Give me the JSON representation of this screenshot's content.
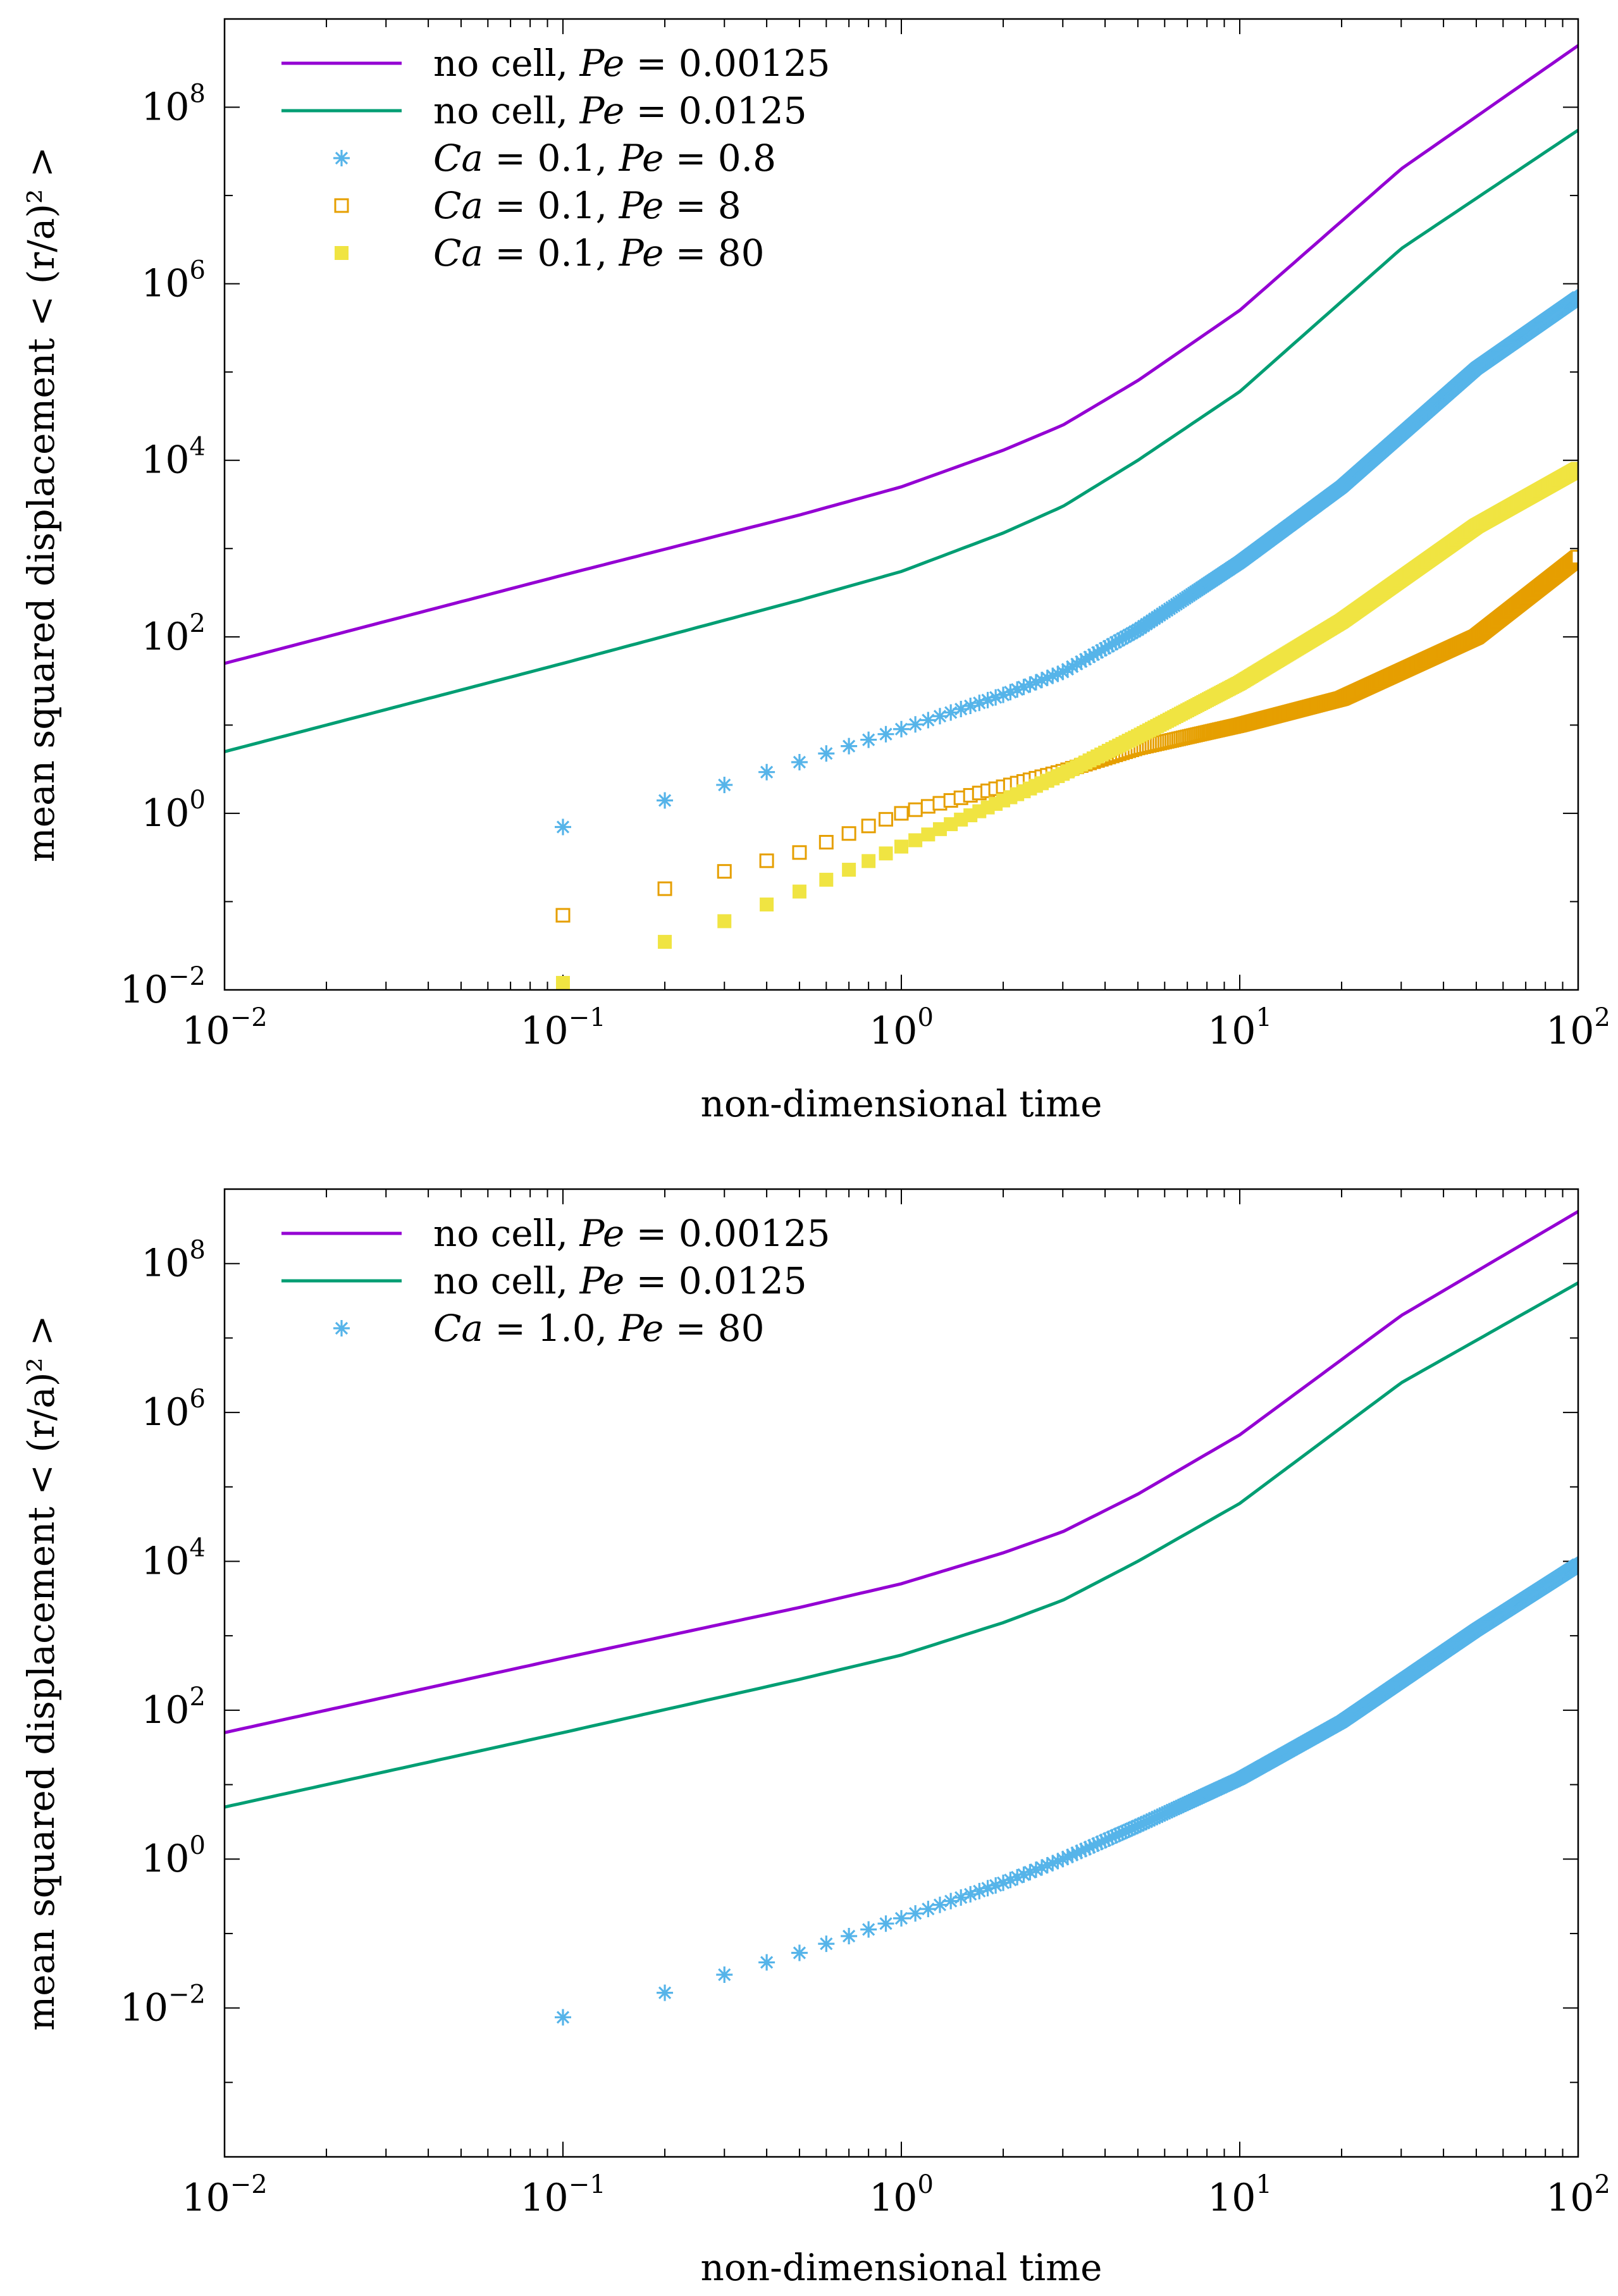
{
  "colors": {
    "no_cell_Pe_0_00125": "#9400d3",
    "no_cell_Pe_0_0125": "#009e73",
    "sky": "#56b4e9",
    "orange": "#e69f00",
    "yellow": "#f0e442"
  },
  "chart_data": [
    {
      "type": "scatter",
      "xscale": "log",
      "yscale": "log",
      "xlim": [
        0.01,
        100
      ],
      "ylim": [
        0.01,
        1000000000
      ],
      "xlabel": "non-dimensional time",
      "ylabel": "mean squared displacement < (r/a)² >",
      "xticks": [
        {
          "base": "10",
          "exp": "−2"
        },
        {
          "base": "10",
          "exp": "−1"
        },
        {
          "base": "10",
          "exp": "0"
        },
        {
          "base": "10",
          "exp": "1"
        },
        {
          "base": "10",
          "exp": "2"
        }
      ],
      "yticks": [
        {
          "base": "10",
          "exp": "−2"
        },
        {
          "base": "10",
          "exp": "0"
        },
        {
          "base": "10",
          "exp": "2"
        },
        {
          "base": "10",
          "exp": "4"
        },
        {
          "base": "10",
          "exp": "6"
        },
        {
          "base": "10",
          "exp": "8"
        }
      ],
      "legend_position": "top-left",
      "series": [
        {
          "name": "no cell, Pe = 0.00125",
          "legend": {
            "prefix": "no cell, ",
            "parts": [
              "Pe",
              " = 0.00125"
            ]
          },
          "style": "line",
          "color": "#9400d3",
          "x": [
            0.01,
            0.1,
            0.5,
            1,
            2,
            3,
            5,
            10,
            30,
            100
          ],
          "y": [
            50,
            500,
            2400,
            5000,
            13000,
            25000,
            80000,
            500000,
            20000000,
            500000000
          ]
        },
        {
          "name": "no cell, Pe = 0.0125",
          "legend": {
            "prefix": "no cell, ",
            "parts": [
              "Pe",
              " = 0.0125"
            ]
          },
          "style": "line",
          "color": "#009e73",
          "x": [
            0.01,
            0.1,
            0.5,
            1,
            2,
            3,
            5,
            10,
            30,
            100
          ],
          "y": [
            5,
            50,
            260,
            550,
            1500,
            3000,
            10000,
            60000,
            2500000,
            55000000
          ]
        },
        {
          "name": "Ca = 0.1, Pe = 0.8",
          "legend": {
            "prefix": "",
            "parts": [
              "Ca",
              " = 0.1, ",
              "Pe",
              " = 0.8"
            ]
          },
          "style": "star",
          "color": "#56b4e9",
          "x": [
            0.1,
            0.2,
            0.3,
            0.5,
            1,
            2,
            3,
            5,
            10,
            20,
            50,
            100
          ],
          "y": [
            0.7,
            1.4,
            2.1,
            3.8,
            9,
            22,
            40,
            120,
            700,
            5000,
            110000,
            700000
          ]
        },
        {
          "name": "Ca = 0.1, Pe = 8",
          "legend": {
            "prefix": "",
            "parts": [
              "Ca",
              " = 0.1, ",
              "Pe",
              " = 8"
            ]
          },
          "style": "open-square",
          "color": "#e69f00",
          "x": [
            0.1,
            0.2,
            0.3,
            0.5,
            1,
            2,
            3,
            5,
            10,
            20,
            50,
            100
          ],
          "y": [
            0.07,
            0.14,
            0.22,
            0.36,
            1.0,
            2.0,
            3.0,
            5.5,
            10,
            20,
            100,
            800
          ]
        },
        {
          "name": "Ca = 0.1, Pe = 80",
          "legend": {
            "prefix": "",
            "parts": [
              "Ca",
              " = 0.1, ",
              "Pe",
              " = 80"
            ]
          },
          "style": "filled-square",
          "color": "#f0e442",
          "x": [
            0.1,
            0.2,
            0.3,
            0.5,
            1,
            2,
            3,
            5,
            10,
            20,
            50,
            100
          ],
          "y": [
            0.012,
            0.035,
            0.06,
            0.13,
            0.42,
            1.4,
            2.8,
            7.5,
            30,
            150,
            1800,
            8000
          ]
        }
      ]
    },
    {
      "type": "scatter",
      "xscale": "log",
      "yscale": "log",
      "xlim": [
        0.01,
        100
      ],
      "ylim": [
        0.0001,
        1000000000
      ],
      "xlabel": "non-dimensional time",
      "ylabel": "mean squared displacement < (r/a)² >",
      "xticks": [
        {
          "base": "10",
          "exp": "−2"
        },
        {
          "base": "10",
          "exp": "−1"
        },
        {
          "base": "10",
          "exp": "0"
        },
        {
          "base": "10",
          "exp": "1"
        },
        {
          "base": "10",
          "exp": "2"
        }
      ],
      "yticks": [
        {
          "base": "10",
          "exp": "−2"
        },
        {
          "base": "10",
          "exp": "0"
        },
        {
          "base": "10",
          "exp": "2"
        },
        {
          "base": "10",
          "exp": "4"
        },
        {
          "base": "10",
          "exp": "6"
        },
        {
          "base": "10",
          "exp": "8"
        }
      ],
      "legend_position": "top-left",
      "series": [
        {
          "name": "no cell, Pe = 0.00125",
          "legend": {
            "prefix": "no cell, ",
            "parts": [
              "Pe",
              " = 0.00125"
            ]
          },
          "style": "line",
          "color": "#9400d3",
          "x": [
            0.01,
            0.1,
            0.5,
            1,
            2,
            3,
            5,
            10,
            30,
            100
          ],
          "y": [
            50,
            500,
            2400,
            5000,
            13000,
            25000,
            80000,
            500000,
            20000000,
            500000000
          ]
        },
        {
          "name": "no cell, Pe = 0.0125",
          "legend": {
            "prefix": "no cell, ",
            "parts": [
              "Pe",
              " = 0.0125"
            ]
          },
          "style": "line",
          "color": "#009e73",
          "x": [
            0.01,
            0.1,
            0.5,
            1,
            2,
            3,
            5,
            10,
            30,
            100
          ],
          "y": [
            5,
            50,
            260,
            550,
            1500,
            3000,
            10000,
            60000,
            2500000,
            55000000
          ]
        },
        {
          "name": "Ca = 1.0, Pe = 80",
          "legend": {
            "prefix": "",
            "parts": [
              "Ca",
              " = 1.0, ",
              "Pe",
              " = 80"
            ]
          },
          "style": "star",
          "color": "#56b4e9",
          "x": [
            0.1,
            0.2,
            0.3,
            0.5,
            1,
            2,
            3,
            5,
            10,
            20,
            50,
            100
          ],
          "y": [
            0.0075,
            0.016,
            0.028,
            0.055,
            0.16,
            0.48,
            1.0,
            2.8,
            12,
            70,
            1200,
            9000
          ]
        }
      ]
    }
  ]
}
